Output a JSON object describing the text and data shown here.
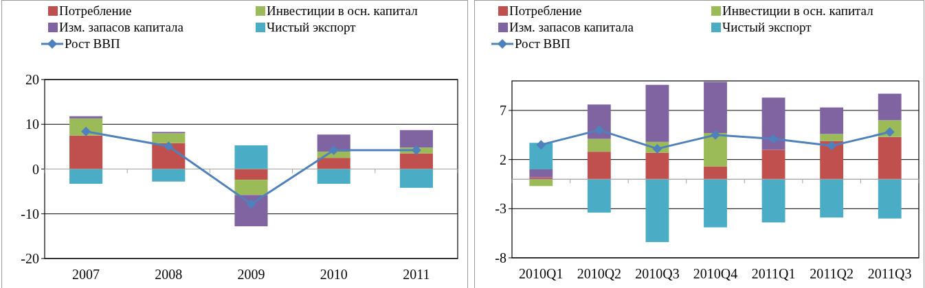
{
  "chart_data": [
    {
      "type": "bar",
      "stacked": true,
      "categories": [
        "2007",
        "2008",
        "2009",
        "2010",
        "2011"
      ],
      "ylim": [
        -20,
        20
      ],
      "yticks": [
        -20,
        -10,
        0,
        10,
        20
      ],
      "grid": "y",
      "legend": "top",
      "marker": "diamond",
      "series": [
        {
          "name": "Потребление",
          "color": "#c0504d",
          "values": [
            7.5,
            5.8,
            -2.4,
            2.5,
            3.5
          ]
        },
        {
          "name": "Инвестиции в осн. капитал",
          "color": "#9bbb59",
          "values": [
            3.8,
            2.2,
            -3.4,
            1.4,
            1.3
          ]
        },
        {
          "name": "Изм. запасов капитала",
          "color": "#8064a2",
          "values": [
            0.5,
            0.3,
            -7.0,
            3.8,
            3.9
          ]
        },
        {
          "name": "Чистый экспорт",
          "color": "#4bacc6",
          "values": [
            -3.3,
            -2.8,
            5.3,
            -3.3,
            -4.2
          ]
        },
        {
          "name": "Рост ВВП",
          "type": "line",
          "color": "#4f81bd",
          "values": [
            8.4,
            5.1,
            -7.8,
            4.2,
            4.2
          ]
        }
      ]
    },
    {
      "type": "bar",
      "stacked": true,
      "categories": [
        "2010Q1",
        "2010Q2",
        "2010Q3",
        "2010Q4",
        "2011Q1",
        "2011Q2",
        "2011Q3"
      ],
      "ylim": [
        -8,
        10
      ],
      "yticks": [
        -8,
        -3,
        2,
        7
      ],
      "grid": "y",
      "legend": "top",
      "marker": "diamond",
      "series": [
        {
          "name": "Потребление",
          "color": "#c0504d",
          "values": [
            0.2,
            2.8,
            2.7,
            1.3,
            3.0,
            3.9,
            4.3
          ]
        },
        {
          "name": "Инвестиции в осн. капитал",
          "color": "#9bbb59",
          "values": [
            -0.7,
            1.3,
            1.1,
            3.4,
            0,
            0.7,
            1.7
          ]
        },
        {
          "name": "Изм. запасов капитала",
          "color": "#8064a2",
          "values": [
            0.8,
            3.5,
            5.8,
            5.2,
            5.3,
            2.7,
            2.7
          ]
        },
        {
          "name": "Чистый экспорт",
          "color": "#4bacc6",
          "values": [
            2.7,
            -3.4,
            -6.4,
            -4.9,
            -4.4,
            -3.9,
            -4.0
          ]
        },
        {
          "name": "Рост ВВП",
          "type": "line",
          "color": "#4f81bd",
          "values": [
            3.5,
            5.0,
            3.1,
            4.5,
            4.1,
            3.4,
            4.8
          ]
        }
      ]
    }
  ]
}
